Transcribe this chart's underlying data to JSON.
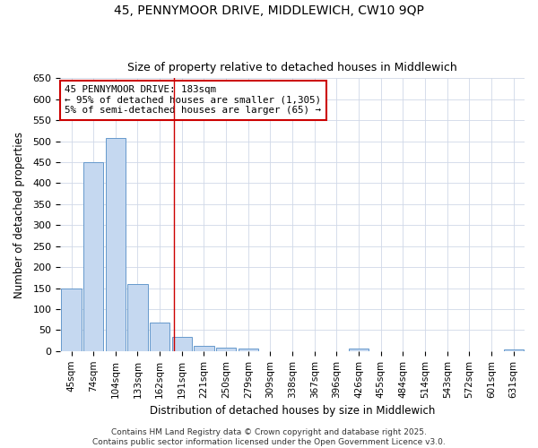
{
  "title_line1": "45, PENNYMOOR DRIVE, MIDDLEWICH, CW10 9QP",
  "title_line2": "Size of property relative to detached houses in Middlewich",
  "xlabel": "Distribution of detached houses by size in Middlewich",
  "ylabel": "Number of detached properties",
  "categories": [
    "45sqm",
    "74sqm",
    "104sqm",
    "133sqm",
    "162sqm",
    "191sqm",
    "221sqm",
    "250sqm",
    "279sqm",
    "309sqm",
    "338sqm",
    "367sqm",
    "396sqm",
    "426sqm",
    "455sqm",
    "484sqm",
    "514sqm",
    "543sqm",
    "572sqm",
    "601sqm",
    "631sqm"
  ],
  "values": [
    150,
    450,
    507,
    160,
    68,
    33,
    13,
    8,
    5,
    0,
    0,
    0,
    0,
    5,
    0,
    0,
    0,
    0,
    0,
    0,
    3
  ],
  "bar_color": "#c5d8f0",
  "bar_edge_color": "#6699cc",
  "red_line_x": 4.65,
  "annotation_title": "45 PENNYMOOR DRIVE: 183sqm",
  "annotation_line2": "← 95% of detached houses are smaller (1,305)",
  "annotation_line3": "5% of semi-detached houses are larger (65) →",
  "annotation_box_color": "#cc0000",
  "ylim": [
    0,
    650
  ],
  "yticks": [
    0,
    50,
    100,
    150,
    200,
    250,
    300,
    350,
    400,
    450,
    500,
    550,
    600,
    650
  ],
  "background_color": "#ffffff",
  "plot_bg_color": "#ffffff",
  "grid_color": "#d0d8e8",
  "footer_line1": "Contains HM Land Registry data © Crown copyright and database right 2025.",
  "footer_line2": "Contains public sector information licensed under the Open Government Licence v3.0."
}
